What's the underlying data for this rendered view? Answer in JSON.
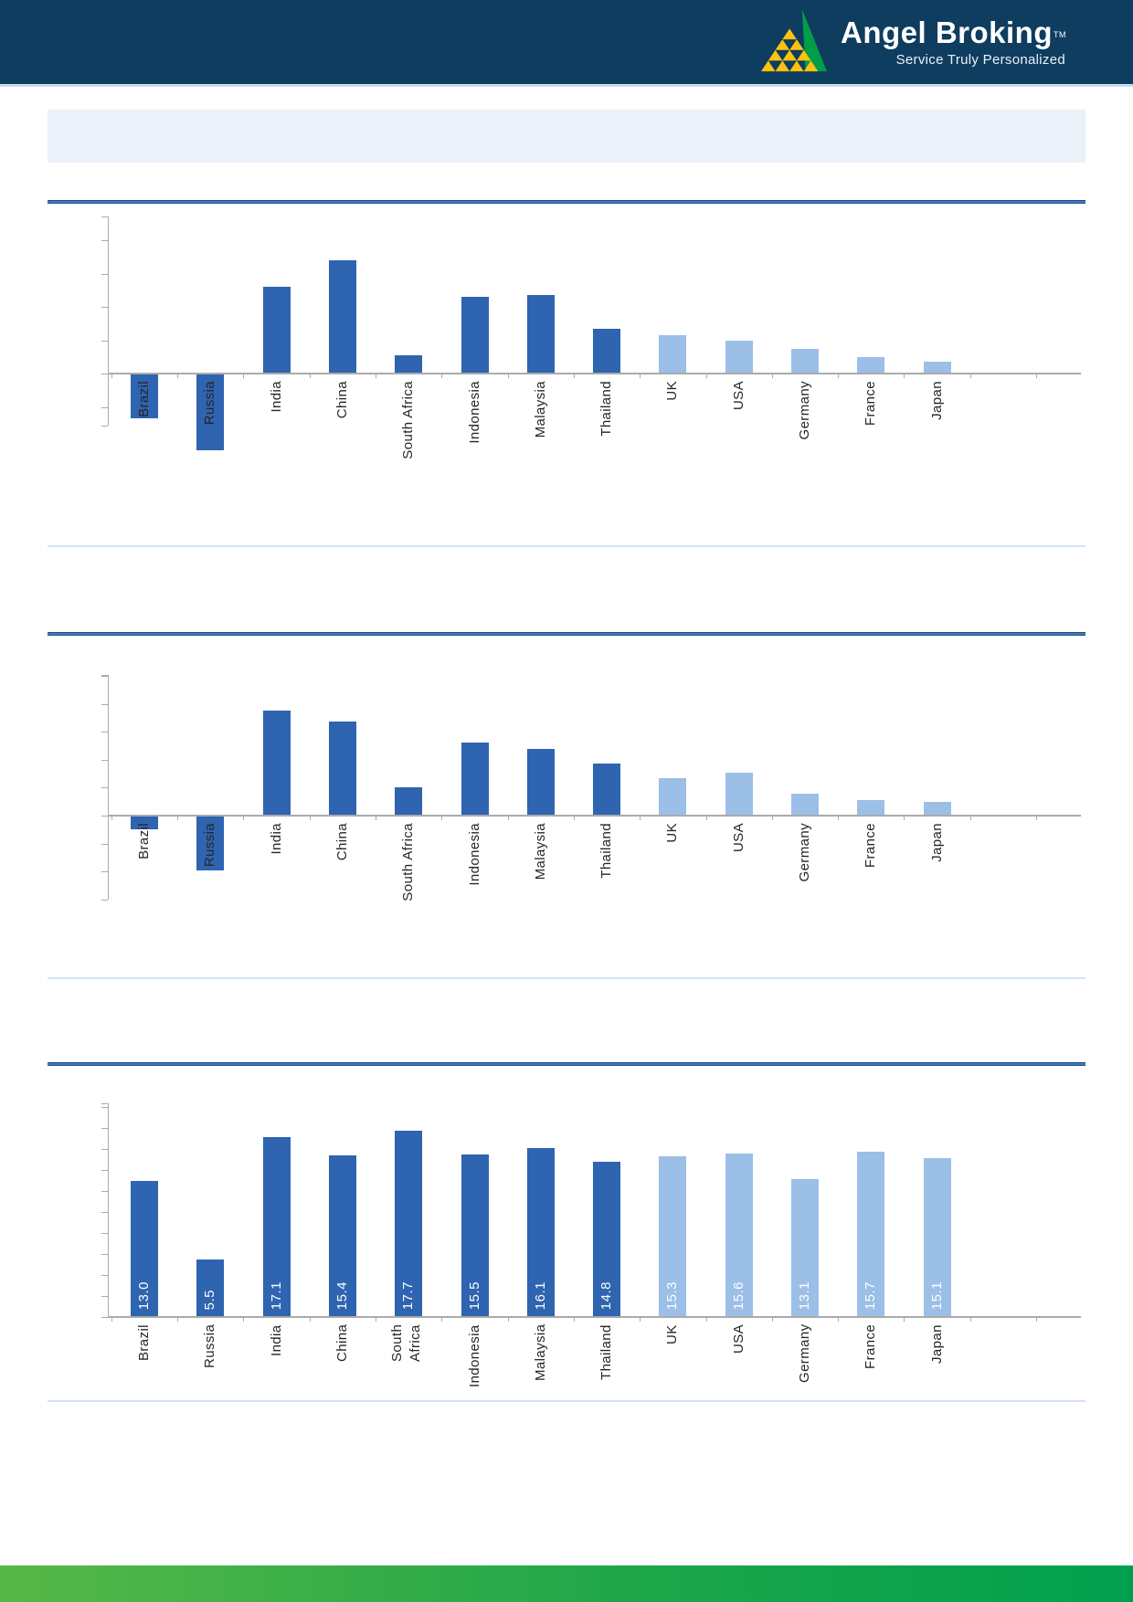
{
  "header": {
    "brand": "Angel Broking",
    "trademark": "TM",
    "tagline": "Service Truly Personalized"
  },
  "banner": {
    "text": ""
  },
  "countries": [
    {
      "name": "Brazil",
      "group": "emerging"
    },
    {
      "name": "Russia",
      "group": "emerging"
    },
    {
      "name": "India",
      "group": "emerging"
    },
    {
      "name": "China",
      "group": "emerging"
    },
    {
      "name": "South Africa",
      "group": "emerging"
    },
    {
      "name": "Indonesia",
      "group": "emerging"
    },
    {
      "name": "Malaysia",
      "group": "emerging"
    },
    {
      "name": "Thailand",
      "group": "emerging"
    },
    {
      "name": "UK",
      "group": "developed"
    },
    {
      "name": "USA",
      "group": "developed"
    },
    {
      "name": "Germany",
      "group": "developed"
    },
    {
      "name": "France",
      "group": "developed"
    },
    {
      "name": "Japan",
      "group": "developed"
    }
  ],
  "colors": {
    "emerging_bar": "#2E64B0",
    "developed_bar": "#9BBFE6",
    "axis": "#ABABAB",
    "header_bg": "#0E3D5F",
    "rule_blue": "#2E74B5",
    "banner_bg": "#EBF1F8",
    "separator": "#D4E3F4",
    "footer_green": "#2FA148",
    "logo_yellow": "#FFC20E",
    "logo_green": "#009E49",
    "value_label_text": "#FFFFFF"
  },
  "chart_data": [
    {
      "type": "bar",
      "title": "",
      "categories": [
        "Brazil",
        "Russia",
        "India",
        "China",
        "South Africa",
        "Indonesia",
        "Malaysia",
        "Thailand",
        "UK",
        "USA",
        "Germany",
        "France",
        "Japan"
      ],
      "values": [
        -2.7,
        -4.6,
        5.2,
        6.8,
        1.1,
        4.6,
        4.7,
        2.7,
        2.3,
        2.0,
        1.5,
        1.0,
        0.7
      ],
      "values_estimated": true,
      "ylim": [
        -3.1,
        9.4
      ],
      "tick_step": 2,
      "y_tick_labels_visible": false,
      "grid": false,
      "legend": false,
      "xlabel": "",
      "ylabel": ""
    },
    {
      "type": "bar",
      "title": "",
      "categories": [
        "Brazil",
        "Russia",
        "India",
        "China",
        "South Africa",
        "Indonesia",
        "Malaysia",
        "Thailand",
        "UK",
        "USA",
        "Germany",
        "France",
        "Japan"
      ],
      "values": [
        -1.0,
        -3.9,
        7.5,
        6.7,
        2.0,
        5.2,
        4.8,
        3.7,
        2.7,
        3.1,
        1.6,
        1.1,
        1.0
      ],
      "values_estimated": true,
      "ylim": [
        -6.0,
        10.1
      ],
      "tick_step": 2,
      "y_tick_labels_visible": false,
      "grid": false,
      "legend": false,
      "xlabel": "",
      "ylabel": ""
    },
    {
      "type": "bar",
      "title": "",
      "categories": [
        "Brazil",
        "Russia",
        "India",
        "China",
        "South Africa",
        "Indonesia",
        "Malaysia",
        "Thailand",
        "UK",
        "USA",
        "Germany",
        "France",
        "Japan"
      ],
      "values": [
        13.0,
        5.5,
        17.1,
        15.4,
        17.7,
        15.5,
        16.1,
        14.8,
        15.3,
        15.6,
        13.1,
        15.7,
        15.1
      ],
      "data_labels": [
        "13.0",
        "5.5",
        "17.1",
        "15.4",
        "17.7",
        "15.5",
        "16.1",
        "14.8",
        "15.3",
        "15.6",
        "13.1",
        "15.7",
        "15.1"
      ],
      "values_estimated": false,
      "ylim": [
        0,
        20.3
      ],
      "tick_step": 2,
      "y_tick_labels_visible": false,
      "grid": false,
      "legend": false,
      "xlabel": "",
      "ylabel": ""
    }
  ]
}
